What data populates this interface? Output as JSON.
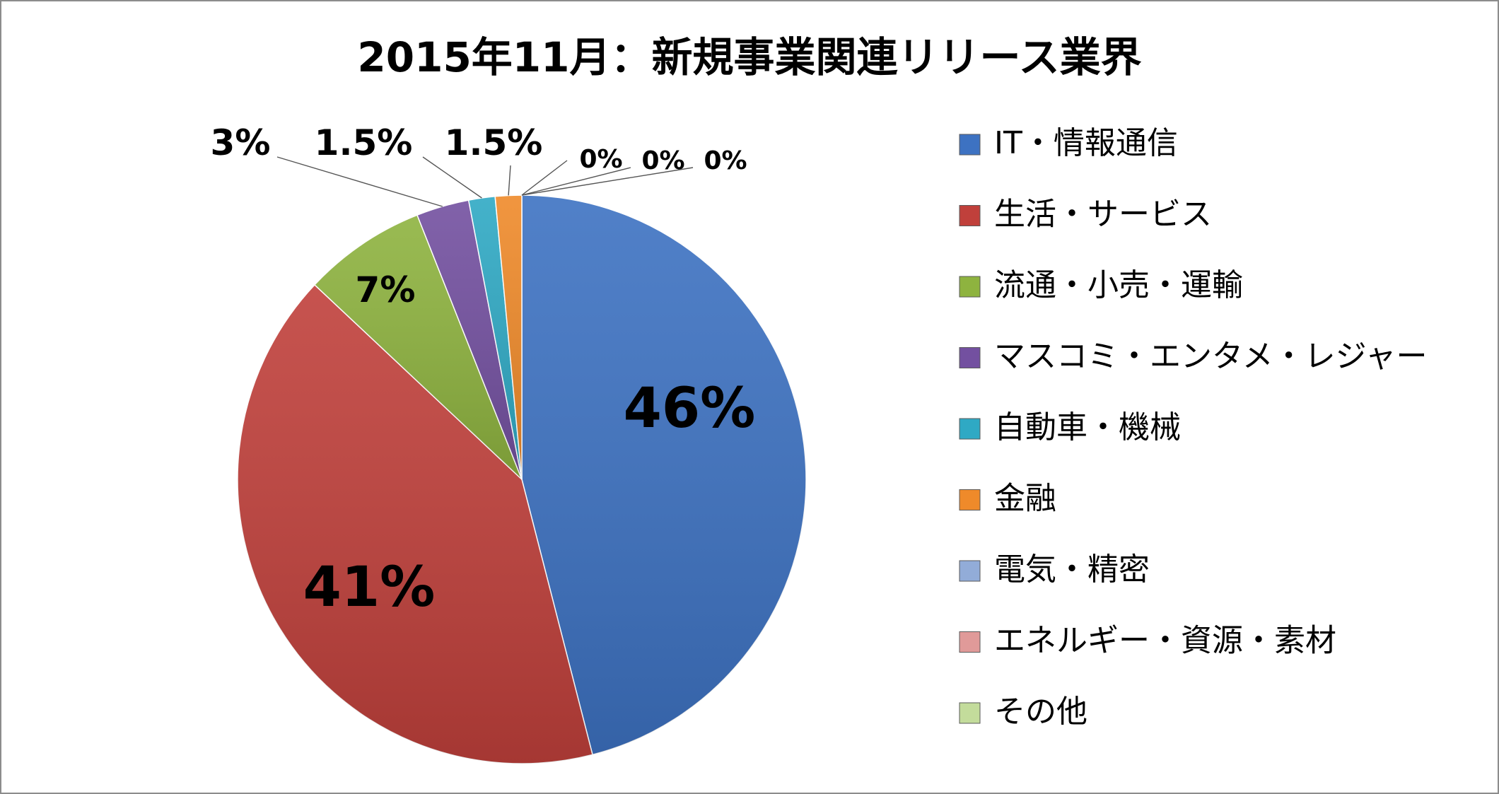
{
  "chart_data": {
    "type": "pie",
    "title": "2015年11月：新規事業関連リリース業界",
    "categories": [
      "IT・情報通信",
      "生活・サービス",
      "流通・小売・運輸",
      "マスコミ・エンタメ・レジャー",
      "自動車・機械",
      "金融",
      "電気・精密",
      "エネルギー・資源・素材",
      "その他"
    ],
    "values": [
      46,
      41,
      7,
      3,
      1.5,
      1.5,
      0,
      0,
      0
    ],
    "data_labels": [
      "46%",
      "41%",
      "7%",
      "3%",
      "1.5%",
      "1.5%",
      "0%",
      "0%",
      "0%"
    ],
    "colors": [
      "#3d72c2",
      "#c0403b",
      "#8eb33f",
      "#7350a0",
      "#2fa9c4",
      "#ef8a2a",
      "#92acd8",
      "#e09a99",
      "#c3dc9b"
    ],
    "legend_position": "right",
    "start_angle": "12 o'clock",
    "direction": "clockwise"
  }
}
